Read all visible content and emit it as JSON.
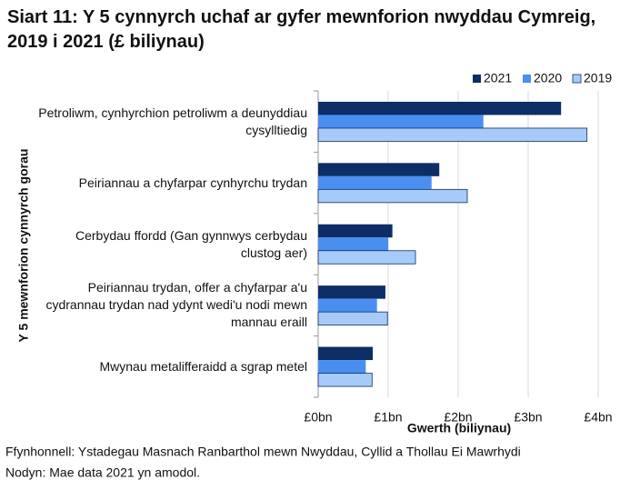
{
  "chart_data": {
    "type": "hbar",
    "title": "Siart 11: Y 5 cynnyrch uchaf ar gyfer mewnforion nwyddau Cymreig, 2019 i 2021 (£ biliynau)",
    "x_label": "Gwerth (biliynau)",
    "y_label": "Y 5 mewnforion cynnyrch gorau",
    "categories": [
      "Petroliwm, cynhyrchion petroliwm a deunyddiau cysylltiedig",
      "Peiriannau a chyfarpar cynhyrchu trydan",
      "Cerbydau ffordd (Gan gynnwys cerbydau clustog aer)",
      "Peiriannau trydan, offer a chyfarpar a'u cydrannau trydan nad ydynt wedi'u nodi mewn mannau eraill",
      "Mwynau metalifferaidd a sgrap metel"
    ],
    "series": [
      {
        "name": "2021",
        "color": "#0c2d66",
        "values": [
          3.47,
          1.73,
          1.06,
          0.96,
          0.78
        ]
      },
      {
        "name": "2020",
        "color": "#4a8ff0",
        "values": [
          2.36,
          1.62,
          1.0,
          0.84,
          0.68
        ]
      },
      {
        "name": "2019",
        "color": "#a8caf8",
        "values": [
          3.84,
          2.13,
          1.39,
          0.99,
          0.77
        ]
      }
    ],
    "xlim": [
      0,
      4
    ],
    "xticks": [
      {
        "value": 0,
        "label": "£0bn"
      },
      {
        "value": 1,
        "label": "£1bn"
      },
      {
        "value": 2,
        "label": "£2bn"
      },
      {
        "value": 3,
        "label": "£3bn"
      },
      {
        "value": 4,
        "label": "£4bn"
      }
    ],
    "grid": true,
    "legend": "top-right",
    "source": "Ffynhonnell: Ystadegau Masnach Ranbarthol mewn Nwyddau, Cyllid a Thollau Ei Mawrhydi",
    "note": "Nodyn: Mae data 2021 yn amodol."
  }
}
